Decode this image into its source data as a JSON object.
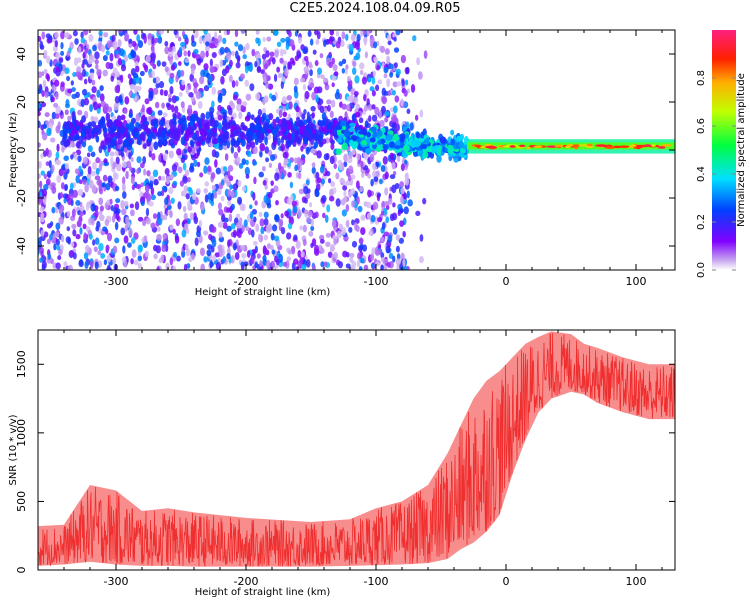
{
  "title": "C2E5.2024.108.04.09.R05",
  "chart_data": [
    {
      "type": "heatmap",
      "xlabel": "Height of straight line (km)",
      "ylabel": "Frequency (Hz)",
      "xlim": [
        -360,
        130
      ],
      "ylim": [
        -50,
        50
      ],
      "x_ticks": [
        -300,
        -200,
        -100,
        0,
        100
      ],
      "y_ticks": [
        -40,
        -20,
        0,
        20,
        40
      ],
      "colorbar": {
        "label": "Normalized spectral amplitude",
        "range": [
          0,
          1
        ],
        "ticks": [
          0.0,
          0.2,
          0.4,
          0.6,
          0.8
        ]
      },
      "features": [
        {
          "segment": "scattered noise",
          "x": [
            -360,
            -70
          ],
          "frequency": [
            -50,
            50
          ],
          "amplitude": [
            0.02,
            0.2
          ]
        },
        {
          "segment": "band narrowing",
          "x": [
            -130,
            -30
          ],
          "frequency": [
            -15,
            12
          ],
          "amplitude": [
            0.2,
            0.45
          ]
        },
        {
          "segment": "steady line",
          "x": [
            -30,
            130
          ],
          "frequency": [
            0,
            3
          ],
          "amplitude": [
            0.5,
            0.95
          ]
        }
      ]
    },
    {
      "type": "line",
      "xlabel": "Height of straight line (km)",
      "ylabel": "SNR (10 * v/v)",
      "xlim": [
        -360,
        130
      ],
      "ylim": [
        0,
        1750
      ],
      "x_ticks": [
        -300,
        -200,
        -100,
        0,
        100
      ],
      "y_ticks": [
        0,
        500,
        1000,
        1500
      ],
      "color": "#f03030",
      "envelope": {
        "x": [
          -360,
          -340,
          -320,
          -300,
          -280,
          -260,
          -240,
          -200,
          -150,
          -120,
          -100,
          -80,
          -60,
          -45,
          -35,
          -25,
          -15,
          -5,
          5,
          15,
          25,
          35,
          50,
          60,
          70,
          90,
          110,
          130
        ],
        "low": [
          30,
          40,
          60,
          40,
          30,
          30,
          25,
          25,
          25,
          30,
          35,
          40,
          50,
          80,
          150,
          200,
          280,
          400,
          700,
          950,
          1150,
          1250,
          1300,
          1280,
          1220,
          1150,
          1100,
          1100
        ],
        "high": [
          320,
          330,
          620,
          580,
          430,
          450,
          420,
          380,
          350,
          370,
          450,
          500,
          620,
          850,
          1050,
          1250,
          1380,
          1450,
          1550,
          1650,
          1700,
          1740,
          1720,
          1650,
          1620,
          1550,
          1500,
          1500
        ]
      }
    }
  ]
}
